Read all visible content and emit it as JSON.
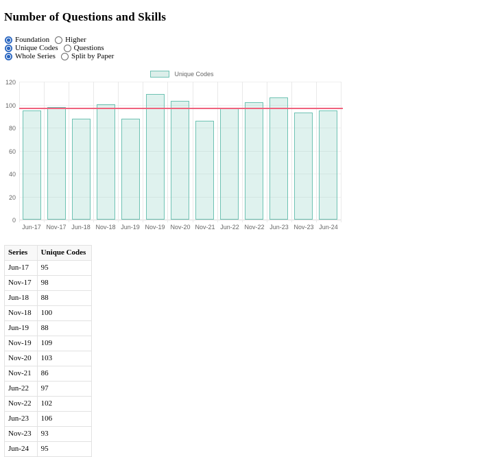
{
  "title": "Number of Questions and Skills",
  "controls": {
    "rows": [
      {
        "options": [
          {
            "label": "Foundation",
            "checked": true
          },
          {
            "label": "Higher",
            "checked": false
          }
        ]
      },
      {
        "options": [
          {
            "label": "Unique Codes",
            "checked": true
          },
          {
            "label": "Questions",
            "checked": false
          }
        ]
      },
      {
        "options": [
          {
            "label": "Whole Series",
            "checked": true
          },
          {
            "label": "Split by Paper",
            "checked": false
          }
        ]
      }
    ]
  },
  "chart_data": {
    "type": "bar",
    "title": "",
    "categories": [
      "Jun-17",
      "Nov-17",
      "Jun-18",
      "Nov-18",
      "Jun-19",
      "Nov-19",
      "Nov-20",
      "Nov-21",
      "Jun-22",
      "Nov-22",
      "Jun-23",
      "Nov-23",
      "Jun-24"
    ],
    "series": [
      {
        "name": "Unique Codes",
        "values": [
          95,
          98,
          88,
          100,
          88,
          109,
          103,
          86,
          97,
          102,
          106,
          93,
          95
        ]
      }
    ],
    "average_line": 96.9,
    "ylim": [
      0,
      120
    ],
    "ytick_step": 20,
    "grid": true,
    "legend_position": "top-center",
    "colors": {
      "bar_fill": "#dceeea",
      "bar_border": "#6ec2b3",
      "average_line": "#f0637d",
      "gridline": "#e9e9e9",
      "axis_text": "#666666"
    }
  },
  "table": {
    "headers": [
      "Series",
      "Unique Codes"
    ],
    "rows": [
      [
        "Jun-17",
        "95"
      ],
      [
        "Nov-17",
        "98"
      ],
      [
        "Jun-18",
        "88"
      ],
      [
        "Nov-18",
        "100"
      ],
      [
        "Jun-19",
        "88"
      ],
      [
        "Nov-19",
        "109"
      ],
      [
        "Nov-20",
        "103"
      ],
      [
        "Nov-21",
        "86"
      ],
      [
        "Jun-22",
        "97"
      ],
      [
        "Nov-22",
        "102"
      ],
      [
        "Jun-23",
        "106"
      ],
      [
        "Nov-23",
        "93"
      ],
      [
        "Jun-24",
        "95"
      ]
    ]
  }
}
